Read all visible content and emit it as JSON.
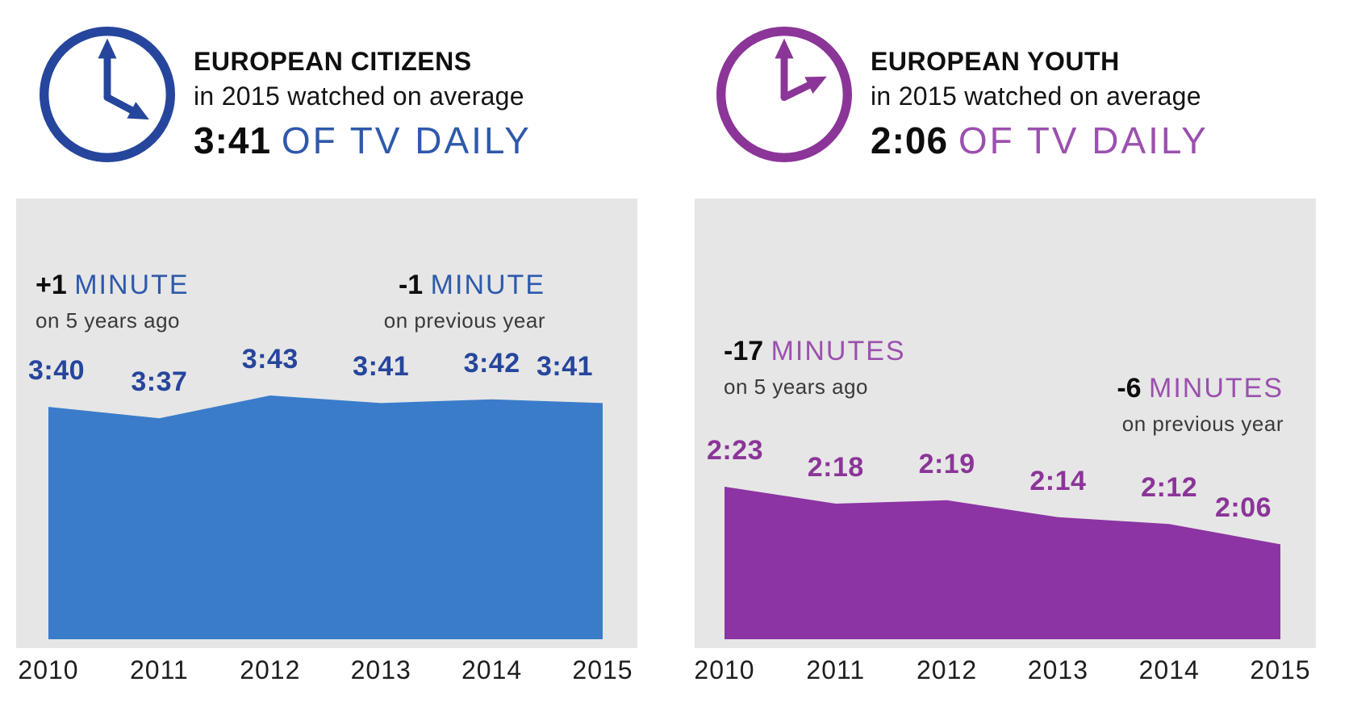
{
  "shared": {
    "background": "#ffffff",
    "panel_background": "#e6e6e6",
    "text_black": "#0f0f0f",
    "text_gray": "#3a3a3a"
  },
  "charts": [
    {
      "header": {
        "title": "EUROPEAN CITIZENS",
        "subtitle": "in 2015 watched on average",
        "highlight_value": "3:41",
        "highlight_suffix": "OF TV DAILY"
      },
      "clock": {
        "icon": "clock-icon",
        "minute_hand_angle_deg": 0,
        "hour_hand_angle_deg": 118
      },
      "annotations": {
        "first": {
          "value": "+1",
          "unit": "MINUTE",
          "sub": "on 5 years ago"
        },
        "second": {
          "value": "-1",
          "unit": "MINUTE",
          "sub": "on previous year"
        }
      },
      "colors": {
        "accent_dark": "#26459c",
        "accent_mid": "#2e59ab",
        "area": "#3a7cca"
      }
    },
    {
      "header": {
        "title": "EUROPEAN YOUTH",
        "subtitle": "in 2015 watched on average",
        "highlight_value": "2:06",
        "highlight_suffix": "OF TV DAILY"
      },
      "clock": {
        "icon": "clock-icon",
        "minute_hand_angle_deg": 0,
        "hour_hand_angle_deg": 64
      },
      "annotations": {
        "first": {
          "value": "-17",
          "unit": "MINUTES",
          "sub": "on 5 years ago"
        },
        "second": {
          "value": "-6",
          "unit": "MINUTES",
          "sub": "on previous year"
        }
      },
      "colors": {
        "accent_dark": "#8b3598",
        "accent_mid": "#9b50ae",
        "area": "#8c34a3"
      }
    }
  ],
  "chart_data": [
    {
      "type": "area",
      "title": "EUROPEAN CITIZENS — in 2015 watched on average 3:41 OF TV DAILY",
      "categories": [
        "2010",
        "2011",
        "2012",
        "2013",
        "2014",
        "2015"
      ],
      "values_minutes": [
        220,
        217,
        223,
        221,
        222,
        221
      ],
      "point_labels": [
        "3:40",
        "3:37",
        "3:43",
        "3:41",
        "3:42",
        "3:41"
      ],
      "annotations": [
        "+1 MINUTE on 5 years ago",
        "-1 MINUTE on previous year"
      ],
      "grid": false,
      "legend": "none",
      "y_axis": "hidden"
    },
    {
      "type": "area",
      "title": "EUROPEAN YOUTH — in 2015 watched on average 2:06 OF TV DAILY",
      "categories": [
        "2010",
        "2011",
        "2012",
        "2013",
        "2014",
        "2015"
      ],
      "values_minutes": [
        143,
        138,
        139,
        134,
        132,
        126
      ],
      "point_labels": [
        "2:23",
        "2:18",
        "2:19",
        "2:14",
        "2:12",
        "2:06"
      ],
      "annotations": [
        "-17 MINUTES on 5 years ago",
        "-6 MINUTES on previous year"
      ],
      "grid": false,
      "legend": "none",
      "y_axis": "hidden"
    }
  ]
}
